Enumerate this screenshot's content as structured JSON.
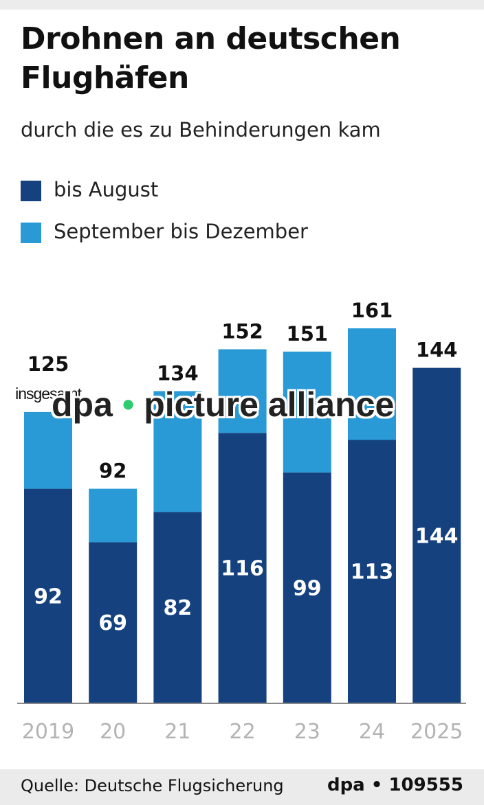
{
  "header": {
    "title": "Drohnen an deutschen Flughäfen",
    "subtitle": "durch die es zu Behinderungen kam"
  },
  "legend": [
    {
      "label": "bis August",
      "color": "#15417e"
    },
    {
      "label": "September bis Dezember",
      "color": "#2a9ad6"
    }
  ],
  "watermark": {
    "left": "dpa",
    "dot": "•",
    "right": "picture alliance"
  },
  "footer": {
    "source": "Quelle: Deutsche Flugsicherung",
    "credit": "dpa • 109555"
  },
  "chart_data": {
    "type": "bar",
    "stacked": true,
    "categories": [
      "2019",
      "20",
      "21",
      "22",
      "23",
      "24",
      "2025"
    ],
    "series": [
      {
        "name": "bis August",
        "values": [
          92,
          69,
          82,
          116,
          99,
          113,
          144
        ],
        "color": "#15417e"
      },
      {
        "name": "September bis Dezember",
        "values": [
          33,
          23,
          52,
          36,
          52,
          48,
          0
        ],
        "color": "#2a9ad6"
      }
    ],
    "totals": [
      125,
      92,
      134,
      152,
      151,
      161,
      144
    ],
    "total_annotation": "insgesamt",
    "ylim": [
      0,
      200
    ],
    "grid": false,
    "axis_color": "#888888",
    "tick_color": "#b3b3b3"
  }
}
